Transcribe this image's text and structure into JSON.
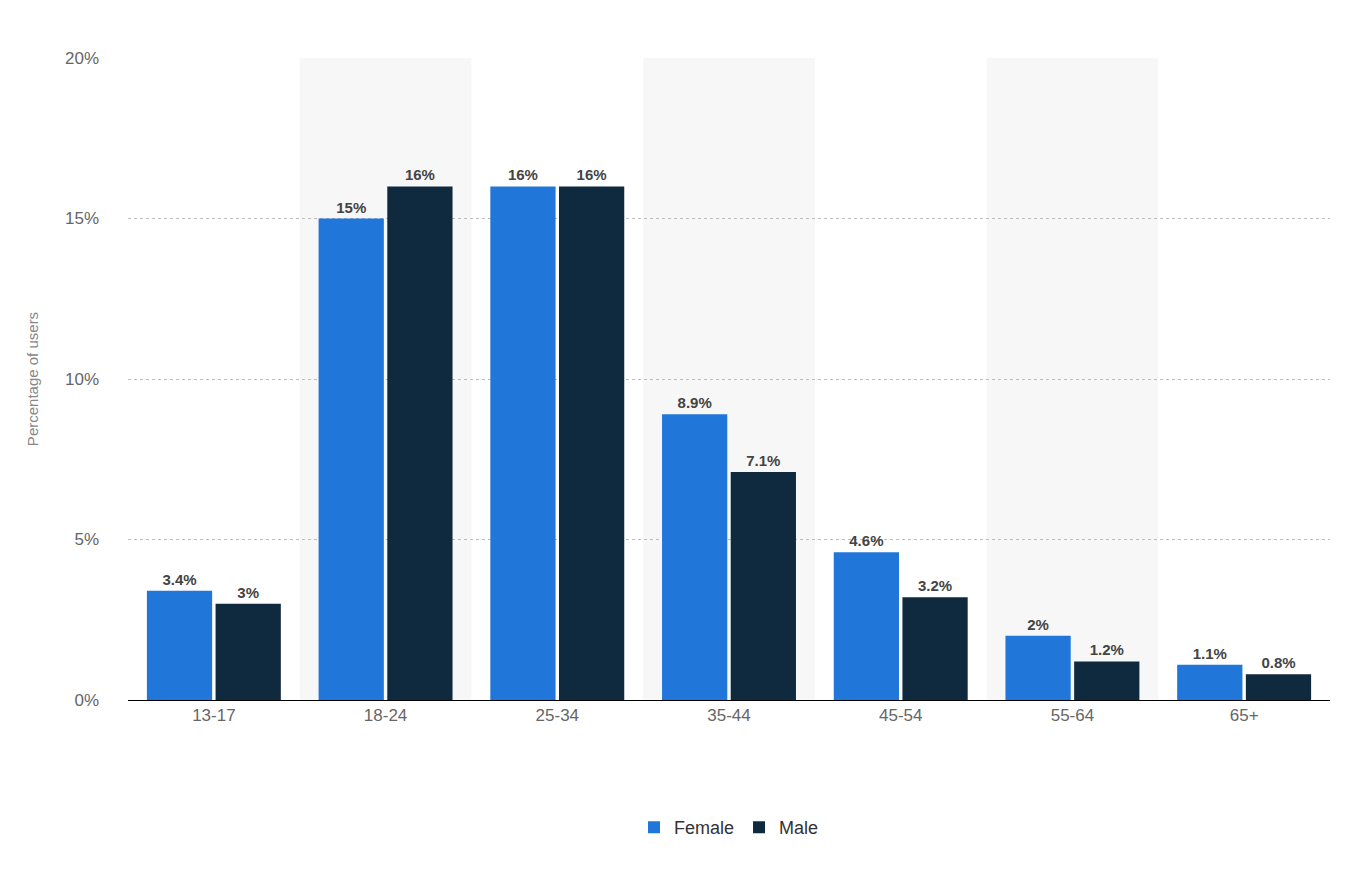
{
  "chart_data": {
    "type": "bar",
    "y_label": "Percentage of users",
    "categories": [
      "13-17",
      "18-24",
      "25-34",
      "35-44",
      "45-54",
      "55-64",
      "65+"
    ],
    "series": [
      {
        "name": "Female",
        "color": "#2176d9",
        "values": [
          3.4,
          15,
          16,
          8.9,
          4.6,
          2,
          1.1
        ],
        "value_labels": [
          "3.4%",
          "15%",
          "16%",
          "8.9%",
          "4.6%",
          "2%",
          "1.1%"
        ]
      },
      {
        "name": "Male",
        "color": "#0f2a3f",
        "values": [
          3,
          16,
          16,
          7.1,
          3.2,
          1.2,
          0.8
        ],
        "value_labels": [
          "3%",
          "16%",
          "16%",
          "7.1%",
          "3.2%",
          "1.2%",
          "0.8%"
        ]
      }
    ],
    "ylim": [
      0,
      20
    ],
    "yticks": [
      {
        "value": 0,
        "label": "0%"
      },
      {
        "value": 5,
        "label": "5%"
      },
      {
        "value": 10,
        "label": "10%"
      },
      {
        "value": 15,
        "label": "15%"
      },
      {
        "value": 20,
        "label": "20%"
      }
    ],
    "grid": true,
    "data_labels": true,
    "legend": "bottom"
  }
}
